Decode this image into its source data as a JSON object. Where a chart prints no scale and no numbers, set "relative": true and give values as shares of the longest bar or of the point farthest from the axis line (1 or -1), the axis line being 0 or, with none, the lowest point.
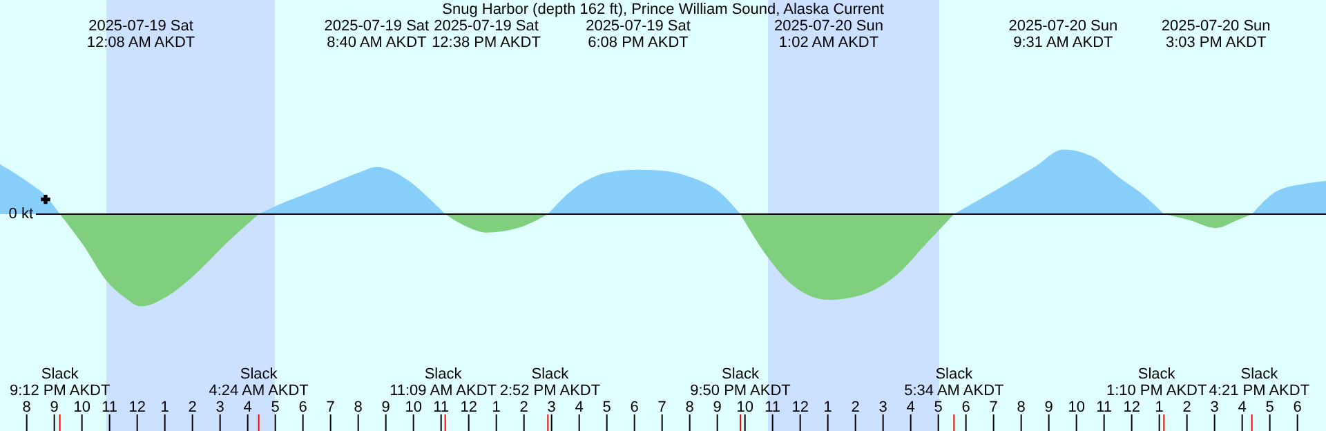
{
  "chart_data": {
    "type": "area",
    "relative": true,
    "title": "Snug Harbor (depth 162 ft), Prince William Sound, Alaska Current",
    "x": [
      "2025-07-18T19:02",
      "2025-07-18T20:02",
      "2025-07-18T20:41",
      "2025-07-18T21:12",
      "2025-07-18T22:02",
      "2025-07-18T22:53",
      "2025-07-18T23:32",
      "2025-07-19T00:08",
      "2025-07-19T01:02",
      "2025-07-19T02:02",
      "2025-07-19T03:17",
      "2025-07-19T04:24",
      "2025-07-19T05:02",
      "2025-07-19T06:32",
      "2025-07-19T08:02",
      "2025-07-19T08:40",
      "2025-07-19T09:47",
      "2025-07-19T10:32",
      "2025-07-19T11:09",
      "2025-07-19T12:02",
      "2025-07-19T12:38",
      "2025-07-19T13:47",
      "2025-07-19T14:52",
      "2025-07-19T15:47",
      "2025-07-19T17:02",
      "2025-07-19T18:08",
      "2025-07-19T19:02",
      "2025-07-19T20:02",
      "2025-07-19T21:02",
      "2025-07-19T21:50",
      "2025-07-19T22:47",
      "2025-07-19T23:32",
      "2025-07-20T01:02",
      "2025-07-20T02:17",
      "2025-07-20T03:32",
      "2025-07-20T04:32",
      "2025-07-20T05:34",
      "2025-07-20T07:02",
      "2025-07-20T08:32",
      "2025-07-20T09:31",
      "2025-07-20T10:32",
      "2025-07-20T11:32",
      "2025-07-20T12:32",
      "2025-07-20T13:10",
      "2025-07-20T14:02",
      "2025-07-20T15:03",
      "2025-07-20T15:47",
      "2025-07-20T16:21",
      "2025-07-20T17:16",
      "2025-07-20T18:16",
      "2025-07-20T19:02"
    ],
    "series": [
      {
        "color": "#87cefa",
        "values": [
          0.54,
          0.35,
          0.2,
          0,
          null,
          null,
          null,
          null,
          null,
          null,
          null,
          0,
          0.09,
          0.27,
          0.45,
          0.51,
          0.37,
          0.18,
          0,
          null,
          null,
          null,
          0,
          0.27,
          0.45,
          0.48,
          0.47,
          0.4,
          0.25,
          0,
          null,
          null,
          null,
          null,
          null,
          null,
          0,
          0.25,
          0.52,
          0.7,
          0.63,
          0.4,
          0.18,
          0,
          null,
          null,
          null,
          0,
          0.25,
          0.33,
          0.36
        ]
      },
      {
        "color": "#7fcf7f",
        "values": [
          null,
          null,
          null,
          0,
          -0.33,
          -0.72,
          -0.9,
          -1,
          -0.9,
          -0.67,
          -0.3,
          0,
          null,
          null,
          null,
          null,
          null,
          null,
          0,
          -0.15,
          -0.2,
          -0.15,
          0,
          null,
          null,
          null,
          null,
          null,
          null,
          0,
          -0.45,
          -0.72,
          -0.93,
          -0.87,
          -0.65,
          -0.33,
          0,
          null,
          null,
          null,
          null,
          null,
          null,
          0,
          -0.06,
          -0.15,
          -0.07,
          0,
          null,
          null,
          null
        ]
      },
      {
        "type": "scatter",
        "color": "#000000",
        "marker": "cross",
        "x": [
          "2025-07-18T20:41"
        ],
        "values": [
          0.16
        ]
      }
    ],
    "xlim": [
      "2025-07-18T19:02",
      "2025-07-20T19:02"
    ],
    "xticks": [
      {
        "value": "2025-07-18T20:00",
        "label": "8"
      },
      {
        "value": "2025-07-18T21:00",
        "label": "9"
      },
      {
        "value": "2025-07-18T22:00",
        "label": "10"
      },
      {
        "value": "2025-07-18T23:00",
        "label": "11"
      },
      {
        "value": "2025-07-19T00:00",
        "label": "12"
      },
      {
        "value": "2025-07-19T01:00",
        "label": "1"
      },
      {
        "value": "2025-07-19T02:00",
        "label": "2"
      },
      {
        "value": "2025-07-19T03:00",
        "label": "3"
      },
      {
        "value": "2025-07-19T04:00",
        "label": "4"
      },
      {
        "value": "2025-07-19T05:00",
        "label": "5"
      },
      {
        "value": "2025-07-19T06:00",
        "label": "6"
      },
      {
        "value": "2025-07-19T07:00",
        "label": "7"
      },
      {
        "value": "2025-07-19T08:00",
        "label": "8"
      },
      {
        "value": "2025-07-19T09:00",
        "label": "9"
      },
      {
        "value": "2025-07-19T10:00",
        "label": "10"
      },
      {
        "value": "2025-07-19T11:00",
        "label": "11"
      },
      {
        "value": "2025-07-19T12:00",
        "label": "12"
      },
      {
        "value": "2025-07-19T13:00",
        "label": "1"
      },
      {
        "value": "2025-07-19T14:00",
        "label": "2"
      },
      {
        "value": "2025-07-19T15:00",
        "label": "3"
      },
      {
        "value": "2025-07-19T16:00",
        "label": "4"
      },
      {
        "value": "2025-07-19T17:00",
        "label": "5"
      },
      {
        "value": "2025-07-19T18:00",
        "label": "6"
      },
      {
        "value": "2025-07-19T19:00",
        "label": "7"
      },
      {
        "value": "2025-07-19T20:00",
        "label": "8"
      },
      {
        "value": "2025-07-19T21:00",
        "label": "9"
      },
      {
        "value": "2025-07-19T22:00",
        "label": "10"
      },
      {
        "value": "2025-07-19T23:00",
        "label": "11"
      },
      {
        "value": "2025-07-20T00:00",
        "label": "12"
      },
      {
        "value": "2025-07-20T01:00",
        "label": "1"
      },
      {
        "value": "2025-07-20T02:00",
        "label": "2"
      },
      {
        "value": "2025-07-20T03:00",
        "label": "3"
      },
      {
        "value": "2025-07-20T04:00",
        "label": "4"
      },
      {
        "value": "2025-07-20T05:00",
        "label": "5"
      },
      {
        "value": "2025-07-20T06:00",
        "label": "6"
      },
      {
        "value": "2025-07-20T07:00",
        "label": "7"
      },
      {
        "value": "2025-07-20T08:00",
        "label": "8"
      },
      {
        "value": "2025-07-20T09:00",
        "label": "9"
      },
      {
        "value": "2025-07-20T10:00",
        "label": "10"
      },
      {
        "value": "2025-07-20T11:00",
        "label": "11"
      },
      {
        "value": "2025-07-20T12:00",
        "label": "12"
      },
      {
        "value": "2025-07-20T13:00",
        "label": "1"
      },
      {
        "value": "2025-07-20T14:00",
        "label": "2"
      },
      {
        "value": "2025-07-20T15:00",
        "label": "3"
      },
      {
        "value": "2025-07-20T16:00",
        "label": "4"
      },
      {
        "value": "2025-07-20T17:00",
        "label": "5"
      },
      {
        "value": "2025-07-20T18:00",
        "label": "6"
      }
    ],
    "x2lim": [
      "2025-07-18T19:02",
      "2025-07-20T19:02"
    ],
    "x2ticks": [
      {
        "value": "2025-07-19T00:08",
        "label": "2025-07-19 Sat\n12:08 AM AKDT"
      },
      {
        "value": "2025-07-19T08:40",
        "label": "2025-07-19 Sat\n8:40 AM AKDT"
      },
      {
        "value": "2025-07-19T12:38",
        "label": "2025-07-19 Sat\n12:38 PM AKDT"
      },
      {
        "value": "2025-07-19T18:08",
        "label": "2025-07-19 Sat\n6:08 PM AKDT"
      },
      {
        "value": "2025-07-20T01:02",
        "label": "2025-07-20 Sun\n1:02 AM AKDT"
      },
      {
        "value": "2025-07-20T09:31",
        "label": "2025-07-20 Sun\n9:31 AM AKDT"
      },
      {
        "value": "2025-07-20T15:03",
        "label": "2025-07-20 Sun\n3:03 PM AKDT"
      }
    ],
    "bands": [
      {
        "axis": "x",
        "from": "2025-07-18T22:53",
        "to": "2025-07-19T04:59",
        "color": "#cce0ff"
      },
      {
        "axis": "x",
        "from": "2025-07-19T22:50",
        "to": "2025-07-20T05:02",
        "color": "#cce0ff"
      }
    ],
    "ref_lines": [
      {
        "axis": "y",
        "value": 0,
        "label": "0 kt",
        "color": "#000000"
      },
      {
        "axis": "x",
        "value": "2025-07-18T21:12",
        "label": "Slack\n9:12 PM AKDT",
        "color": "#ff0000"
      },
      {
        "axis": "x",
        "value": "2025-07-19T04:24",
        "label": "Slack\n4:24 AM AKDT",
        "color": "#ff0000"
      },
      {
        "axis": "x",
        "value": "2025-07-19T11:09",
        "label": "Slack\n11:09 AM AKDT",
        "color": "#ff0000"
      },
      {
        "axis": "x",
        "value": "2025-07-19T14:52",
        "label": "Slack\n2:52 PM AKDT",
        "color": "#ff0000"
      },
      {
        "axis": "x",
        "value": "2025-07-19T21:50",
        "label": "Slack\n9:50 PM AKDT",
        "color": "#ff0000"
      },
      {
        "axis": "x",
        "value": "2025-07-20T05:34",
        "label": "Slack\n5:34 AM AKDT",
        "color": "#ff0000"
      },
      {
        "axis": "x",
        "value": "2025-07-20T13:10",
        "label": "Slack\n1:10 PM AKDT",
        "color": "#ff0000"
      },
      {
        "axis": "x",
        "value": "2025-07-20T16:21",
        "label": "Slack\n4:21 PM AKDT",
        "color": "#ff0000"
      }
    ]
  }
}
